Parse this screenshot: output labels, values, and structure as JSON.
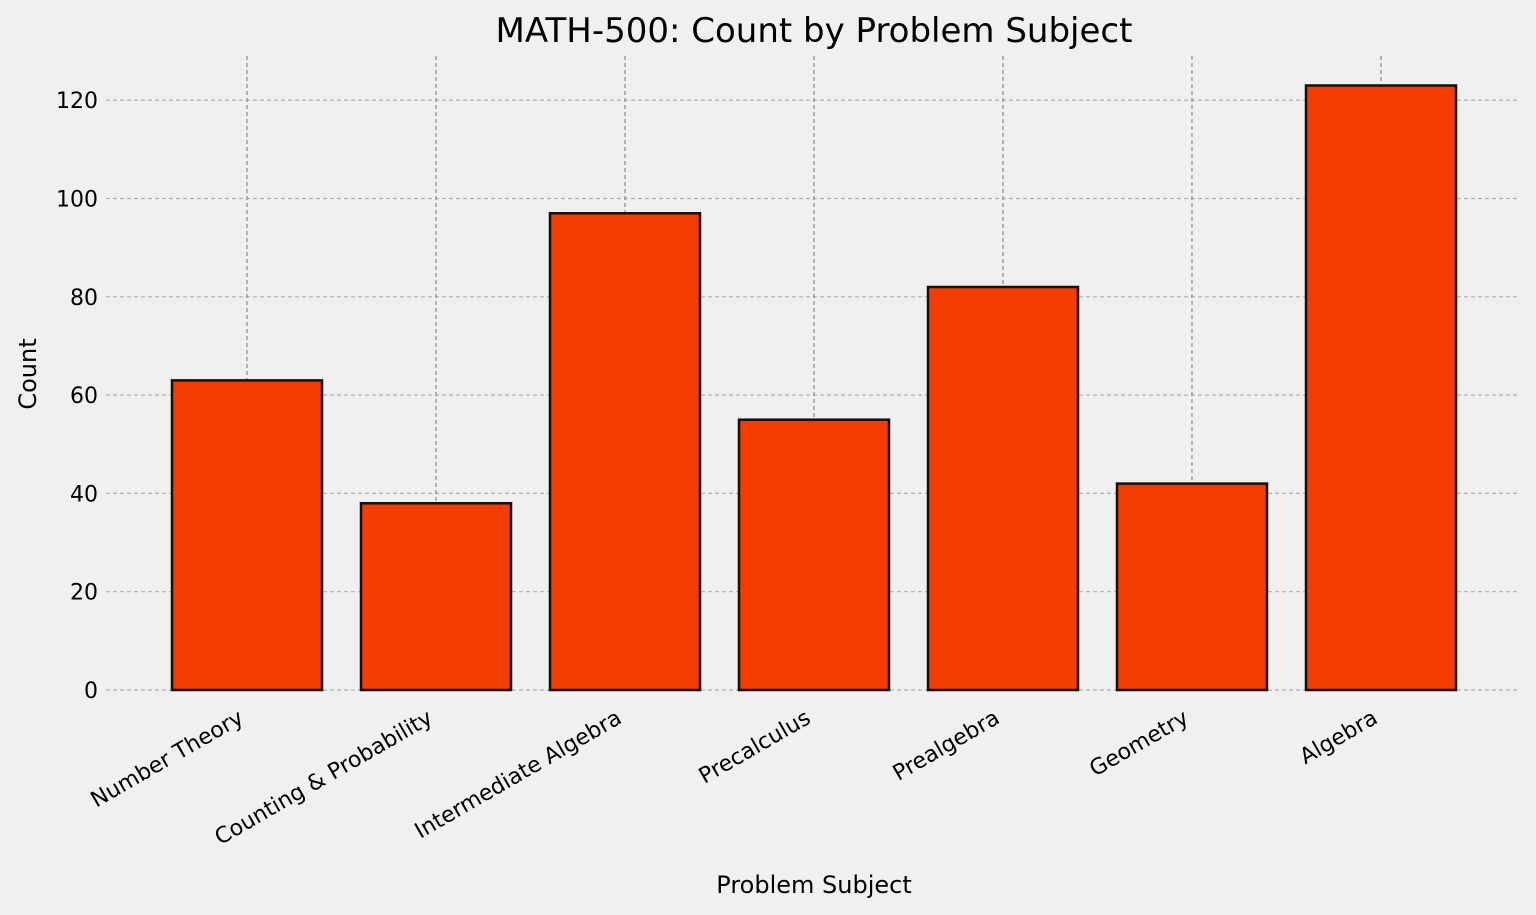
{
  "chart_data": {
    "type": "bar",
    "title": "MATH-500: Count by Problem Subject",
    "xlabel": "Problem Subject",
    "ylabel": "Count",
    "categories": [
      "Number Theory",
      "Counting & Probability",
      "Intermediate Algebra",
      "Precalculus",
      "Prealgebra",
      "Geometry",
      "Algebra"
    ],
    "values": [
      63,
      38,
      97,
      55,
      82,
      42,
      123
    ],
    "ylim": [
      0,
      129
    ],
    "yticks": [
      0,
      20,
      40,
      60,
      80,
      100,
      120
    ],
    "grid": true,
    "bar_color": "#f23c00",
    "edge_color": "#111111",
    "background": "#f0f0f0"
  }
}
